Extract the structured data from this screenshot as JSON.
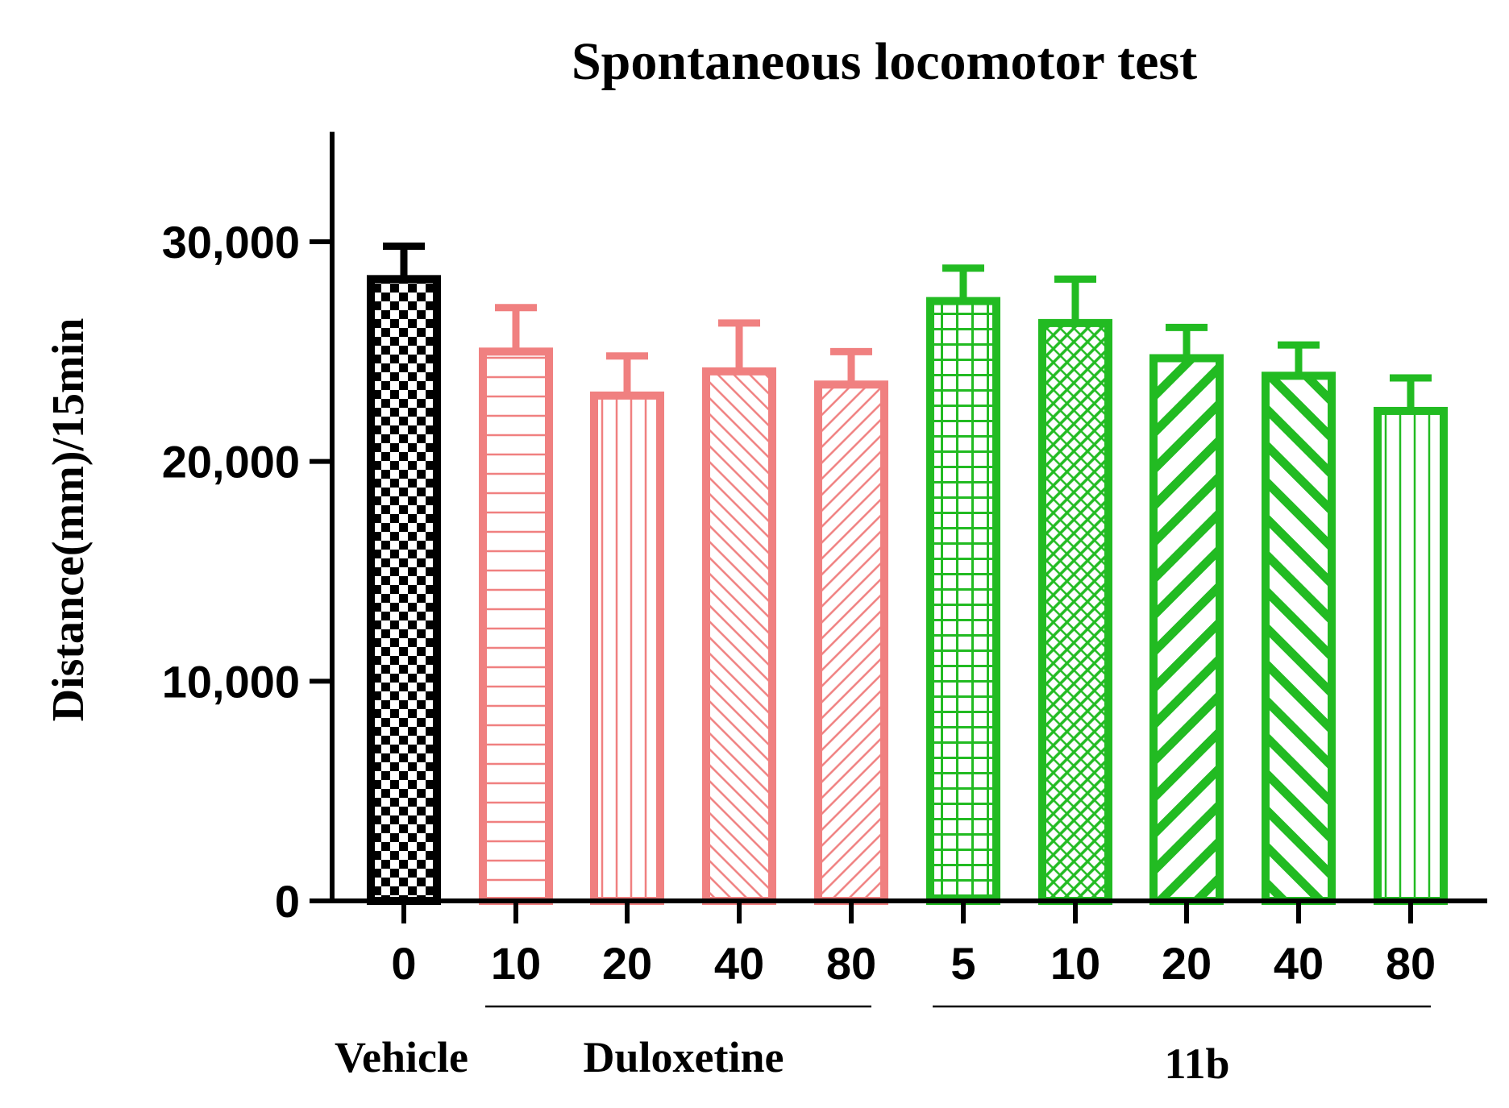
{
  "chart_data": {
    "type": "bar",
    "title": "Spontaneous locomotor test",
    "ylabel": "Distance(mm)/15min",
    "xlabel": "",
    "ylim": [
      0,
      35000
    ],
    "yticks": [
      0,
      10000,
      20000,
      30000
    ],
    "ytick_labels": [
      "0",
      "10,000",
      "20,000",
      "30,000"
    ],
    "categories": [
      "0",
      "10",
      "20",
      "40",
      "80",
      "5",
      "10",
      "20",
      "40",
      "80"
    ],
    "values": [
      28300,
      25000,
      23000,
      24100,
      23500,
      27300,
      26300,
      24700,
      23900,
      22300
    ],
    "errors": [
      1500,
      2000,
      1800,
      2200,
      1500,
      1500,
      2000,
      1400,
      1400,
      1500
    ],
    "groups": [
      {
        "label": "Vehicle",
        "indices": [
          0
        ],
        "underline": false
      },
      {
        "label": "Duloxetine",
        "indices": [
          1,
          2,
          3,
          4
        ],
        "underline": true
      },
      {
        "label": "11b",
        "indices": [
          5,
          6,
          7,
          8,
          9
        ],
        "underline": true
      }
    ],
    "colors": {
      "vehicle": "#000000",
      "duloxetine": "#f08080",
      "compound": "#22bb22",
      "axis": "#000000"
    },
    "patterns": [
      "checker",
      "hlines",
      "vlines",
      "diag-up-fine",
      "diag-down-fine",
      "grid",
      "crosshatch",
      "diag-down-bold",
      "diag-up-bold",
      "vlines"
    ],
    "grid": false,
    "legend": "none"
  }
}
